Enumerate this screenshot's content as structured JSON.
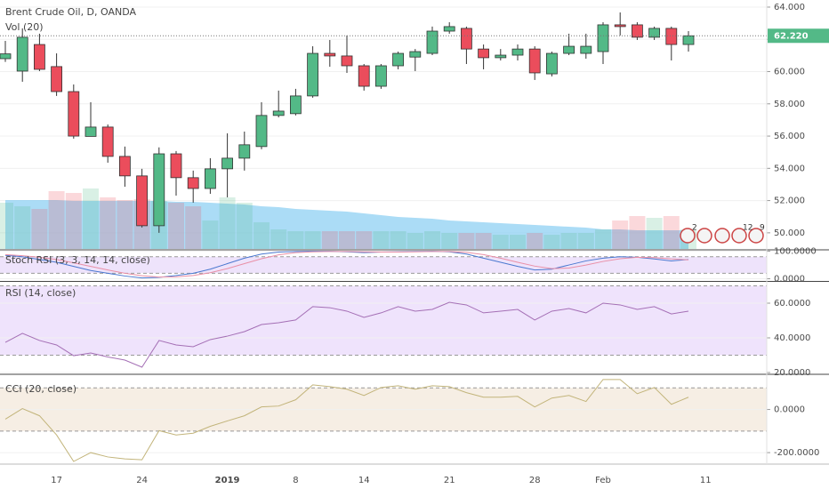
{
  "chart_data": [
    {
      "type": "candlestick",
      "title": "Brent Crude Oil, D, OANDA",
      "categories": [
        null,
        null,
        null,
        "17",
        null,
        null,
        null,
        null,
        "24",
        null,
        null,
        null,
        null,
        "2019",
        null,
        null,
        null,
        "8",
        null,
        null,
        null,
        "14",
        null,
        null,
        null,
        null,
        "21",
        null,
        null,
        null,
        null,
        "28",
        null,
        null,
        null,
        "Feb",
        null,
        null,
        null,
        null,
        null,
        "11"
      ],
      "open": [
        60.8,
        60.03,
        61.68,
        60.31,
        58.76,
        55.98,
        56.56,
        54.74,
        53.53,
        50.44,
        54.9,
        53.42,
        52.75,
        53.97,
        54.63,
        55.35,
        57.28,
        57.39,
        58.49,
        61.13,
        60.97,
        60.36,
        59.09,
        60.36,
        60.9,
        61.13,
        62.51,
        62.68,
        61.4,
        60.86,
        61.02,
        61.4,
        59.86,
        61.13,
        61.13,
        61.24,
        62.9,
        62.9,
        62.13,
        62.68,
        61.68,
        null
      ],
      "high": [
        61.9,
        62.68,
        62.35,
        61.13,
        59.2,
        58.1,
        56.72,
        55.35,
        53.97,
        55.3,
        55.07,
        53.86,
        54.63,
        56.17,
        56.28,
        58.1,
        58.82,
        58.93,
        61.57,
        61.96,
        62.24,
        60.47,
        60.47,
        61.24,
        61.4,
        62.79,
        63.06,
        62.79,
        61.68,
        61.4,
        61.68,
        61.57,
        61.24,
        62.35,
        62.35,
        63.06,
        63.67,
        63.06,
        62.79,
        62.79,
        62.51,
        null
      ],
      "low": [
        60.6,
        59.37,
        60.03,
        58.49,
        55.84,
        55.98,
        54.35,
        52.86,
        50.33,
        50.0,
        52.31,
        51.87,
        52.42,
        52.2,
        53.86,
        55.18,
        57.16,
        57.28,
        58.38,
        60.3,
        59.92,
        58.82,
        58.93,
        60.14,
        60.03,
        61.02,
        62.35,
        60.47,
        60.14,
        60.69,
        60.69,
        59.48,
        59.7,
        61.02,
        60.8,
        60.47,
        62.24,
        61.96,
        61.96,
        60.69,
        61.24,
        null
      ],
      "close": [
        61.1,
        62.13,
        60.14,
        58.76,
        56.0,
        56.56,
        54.74,
        53.53,
        50.44,
        54.9,
        53.42,
        52.75,
        53.97,
        54.63,
        55.46,
        57.28,
        57.55,
        58.49,
        61.13,
        60.97,
        60.36,
        59.09,
        60.36,
        61.13,
        61.24,
        62.51,
        62.79,
        61.4,
        60.86,
        61.02,
        61.4,
        59.92,
        61.13,
        61.57,
        61.57,
        62.9,
        62.79,
        62.13,
        62.68,
        61.68,
        62.22,
        null
      ],
      "up_color": "#53b987",
      "down_color": "#eb4d5c",
      "ylim": [
        49,
        64.44
      ],
      "yticks": [
        {
          "value": 64,
          "label": "64.000"
        },
        {
          "value": 62,
          "label": "62.000"
        },
        {
          "value": 60,
          "label": "60.000"
        },
        {
          "value": 58,
          "label": "58.000"
        },
        {
          "value": 56,
          "label": "56.000"
        },
        {
          "value": 54,
          "label": "54.000"
        },
        {
          "value": 52,
          "label": "52.000"
        },
        {
          "value": 50,
          "label": "50.000"
        }
      ],
      "last_price": {
        "value": 62.22,
        "label": "62.220"
      },
      "volume": {
        "name": "Vol (20)",
        "ylim": [
          0,
          280
        ],
        "ma_color": "#8fd0f3",
        "values": [
          52,
          48,
          45,
          65,
          63,
          68,
          58,
          55,
          56,
          54,
          52,
          48,
          32,
          58,
          52,
          30,
          22,
          20,
          20,
          20,
          20,
          20,
          20,
          20,
          18,
          20,
          18,
          18,
          18,
          16,
          16,
          18,
          16,
          18,
          18,
          22,
          32,
          37,
          35,
          37,
          22,
          null
        ],
        "ma": [
          55,
          55,
          55,
          55,
          54,
          54,
          54,
          54,
          54,
          54,
          53,
          53,
          52,
          51,
          50,
          48,
          47,
          45,
          44,
          43,
          42,
          40,
          38,
          36,
          35,
          34,
          32,
          31,
          30,
          29,
          28,
          27,
          26,
          25,
          24,
          22,
          22,
          21,
          21,
          21,
          21,
          null
        ]
      }
    },
    {
      "type": "line",
      "title": "Stoch RSI (3, 3, 14, 14, close)",
      "ylim": [
        -8,
        102
      ],
      "band": [
        20,
        80
      ],
      "band_color": "#eee3fb",
      "yticks": [
        {
          "value": 100,
          "label": "100.0000"
        },
        {
          "value": 0,
          "label": "0.0000"
        }
      ],
      "series": [
        {
          "color": "#4a78d0",
          "values": [
            85,
            80,
            70,
            60,
            45,
            30,
            20,
            10,
            3,
            5,
            12,
            20,
            35,
            55,
            75,
            90,
            97,
            99,
            100,
            100,
            98,
            95,
            97,
            98,
            99,
            100,
            98,
            90,
            75,
            60,
            45,
            32,
            35,
            50,
            65,
            75,
            80,
            78,
            72,
            65,
            70,
            null
          ]
        },
        {
          "color": "#e98fa6",
          "values": [
            88,
            84,
            78,
            70,
            58,
            45,
            32,
            20,
            11,
            6,
            7,
            12,
            22,
            37,
            55,
            73,
            87,
            95,
            98,
            99,
            99,
            98,
            97,
            97,
            98,
            99,
            99,
            96,
            88,
            75,
            60,
            46,
            37,
            39,
            50,
            63,
            73,
            78,
            77,
            72,
            69,
            null
          ]
        }
      ]
    },
    {
      "type": "line",
      "title": "RSI (14, close)",
      "ylim": [
        19.5,
        72.3
      ],
      "band": [
        30,
        70
      ],
      "band_color": "#efe3fc",
      "yticks": [
        {
          "value": 60,
          "label": "60.0000"
        },
        {
          "value": 40,
          "label": "40.0000"
        },
        {
          "value": 20,
          "label": "20.0000"
        }
      ],
      "series": [
        {
          "color": "#a46fb5",
          "values": [
            37.4,
            42.6,
            38.5,
            35.9,
            29.7,
            31.3,
            29,
            27.2,
            23.1,
            38.5,
            35.9,
            34.9,
            39,
            41,
            43.6,
            47.7,
            48.7,
            50.3,
            58,
            57.4,
            55.4,
            51.8,
            54.4,
            58,
            55.4,
            56.4,
            60.5,
            59,
            54.4,
            55.4,
            56.4,
            50.3,
            55.4,
            56.9,
            54.4,
            60,
            59,
            56.4,
            58,
            53.8,
            55.4,
            null
          ]
        }
      ]
    },
    {
      "type": "line",
      "title": "CCI (20, close)",
      "ylim": [
        -245,
        159
      ],
      "band": [
        -100,
        100
      ],
      "band_color": "#f6eee4",
      "yticks": [
        {
          "value": 0,
          "label": "0.0000"
        },
        {
          "value": -200,
          "label": "-200.0000"
        }
      ],
      "series": [
        {
          "color": "#c2b47a",
          "values": [
            -45,
            4,
            -29,
            -118,
            -241,
            -200,
            -220,
            -229,
            -233,
            -98,
            -118,
            -110,
            -78,
            -53,
            -29,
            12,
            16,
            45,
            114,
            106,
            94,
            65,
            102,
            110,
            94,
            110,
            106,
            78,
            57,
            57,
            61,
            12,
            53,
            65,
            37,
            139,
            139,
            73,
            102,
            24,
            57,
            null
          ]
        }
      ]
    }
  ],
  "events": [
    2,
    12,
    9
  ]
}
